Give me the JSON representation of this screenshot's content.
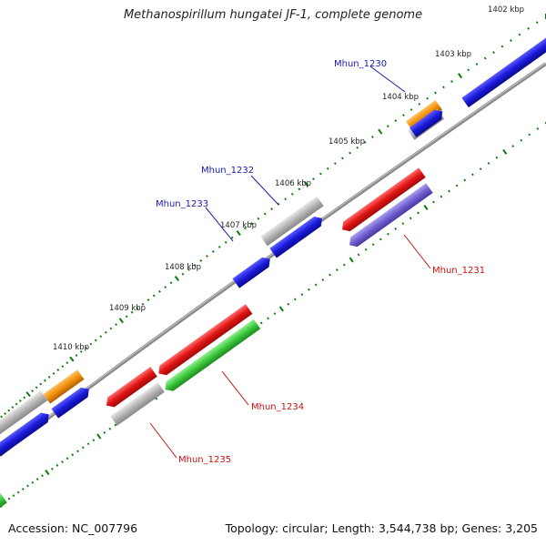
{
  "title": "Methanospirillum hungatei JF-1, complete genome",
  "footer": {
    "accession": "Accession: NC_007796",
    "summary": "Topology: circular; Length: 3,544,738 bp; Genes: 3,205"
  },
  "colors": {
    "blue": "#1a1adb",
    "red": "#e01414",
    "green": "#3cc83c",
    "orange": "#f0900a",
    "gray": "#b4b4b4",
    "purple": "#7060d0",
    "backbone": "#8a8a8a",
    "tick": "#0a7a0a",
    "label_blue": "#1a1aaa",
    "label_red": "#cc1010"
  },
  "kbp_labels": [
    "1402 kbp",
    "1403 kbp",
    "1404 kbp",
    "1405 kbp",
    "1406 kbp",
    "1407 kbp",
    "1408 kbp",
    "1409 kbp",
    "1410 kbp"
  ],
  "gene_labels": [
    {
      "id": "mhun-1230",
      "text": "Mhun_1230",
      "color": "label_blue"
    },
    {
      "id": "mhun-1232",
      "text": "Mhun_1232",
      "color": "label_blue"
    },
    {
      "id": "mhun-1233",
      "text": "Mhun_1233",
      "color": "label_blue"
    },
    {
      "id": "mhun-1231",
      "text": "Mhun_1231",
      "color": "label_red"
    },
    {
      "id": "mhun-1234",
      "text": "Mhun_1234",
      "color": "label_red"
    },
    {
      "id": "mhun-1235",
      "text": "Mhun_1235",
      "color": "label_red"
    }
  ]
}
